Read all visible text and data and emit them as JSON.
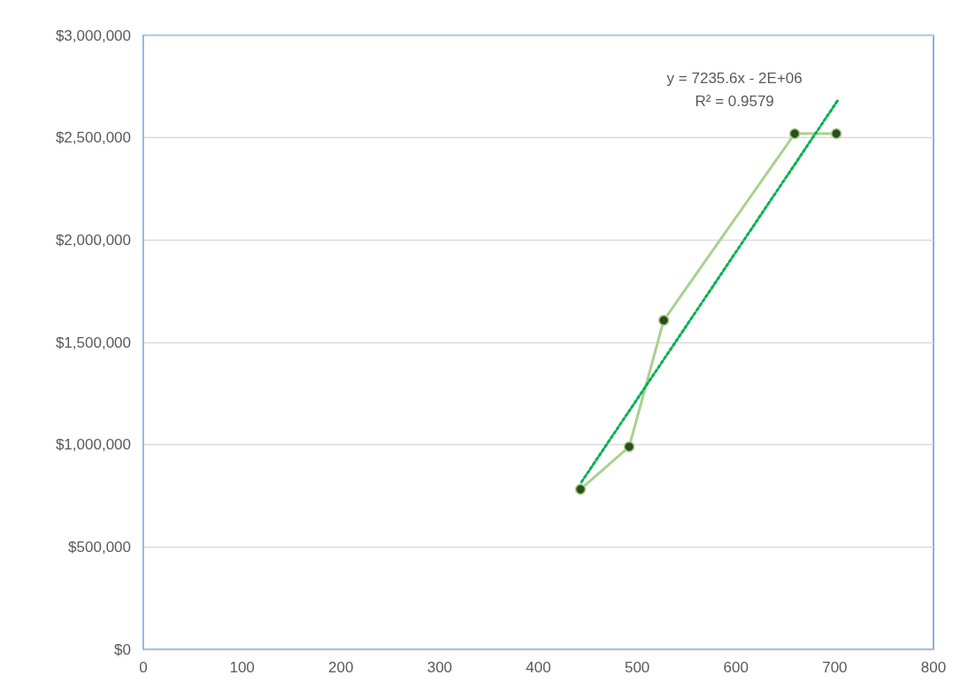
{
  "chart_data": {
    "type": "line",
    "series": [
      {
        "color": "#a9d18e",
        "x": [
          442.6,
          491.9,
          526.9,
          659.5,
          701.6
        ],
        "values": [
          782000,
          990000,
          1608000,
          2520000,
          2520000
        ],
        "marker": "circle",
        "line_style": "solid"
      },
      {
        "color": "#00b050",
        "x": [
          443.5,
          703.4
        ],
        "values": [
          817000,
          2685000
        ],
        "marker": "none",
        "line_style": "dotted"
      }
    ],
    "annotations": [
      "y = 7235.6x - 2E+06",
      "R² = 0.9579"
    ],
    "xlim": [
      0,
      800
    ],
    "xticks": [
      0,
      100,
      200,
      300,
      400,
      500,
      600,
      700,
      800
    ],
    "ylim": [
      0,
      3000000
    ],
    "yticks": [
      {
        "value": 0,
        "label": "$0"
      },
      {
        "value": 500000,
        "label": "$500,000"
      },
      {
        "value": 1000000,
        "label": "$1,000,000"
      },
      {
        "value": 1500000,
        "label": "$1,500,000"
      },
      {
        "value": 2000000,
        "label": "$2,000,000"
      },
      {
        "value": 2500000,
        "label": "$2,500,000"
      },
      {
        "value": 3000000,
        "label": "$3,000,000"
      }
    ],
    "grid": "y"
  }
}
